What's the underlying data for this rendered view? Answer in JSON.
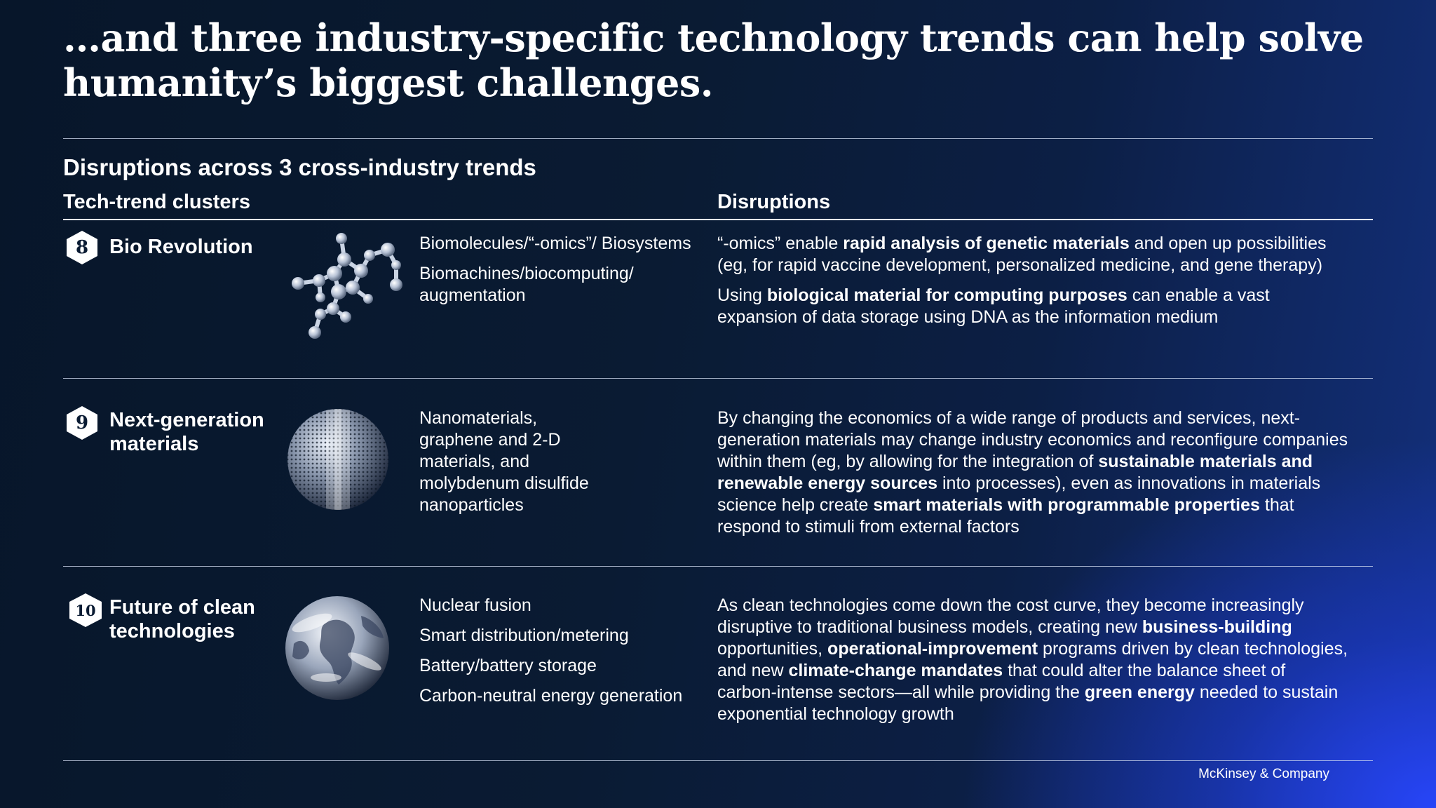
{
  "headline": "…and three industry-specific technology trends can help solve humanity’s biggest challenges.",
  "subhead": "Disruptions across 3 cross-industry trends",
  "columns": {
    "clusters": "Tech-trend clusters",
    "disruptions": "Disruptions"
  },
  "rows": [
    {
      "number": "8",
      "title": "Bio Revolution",
      "image_icon": "molecule-icon",
      "subtopics": [
        "Biomolecules/“-omics”/ Biosystems",
        "Biomachines/biocomputing/ augmentation"
      ],
      "disruptions": [
        [
          {
            "t": "“-omics” enable ",
            "b": false
          },
          {
            "t": "rapid analysis of genetic materials",
            "b": true
          },
          {
            "t": " and open up possibilities (eg, for rapid vaccine development, personalized medicine, and gene therapy)",
            "b": false
          }
        ],
        [
          {
            "t": "Using ",
            "b": false
          },
          {
            "t": "biological material for computing purposes",
            "b": true
          },
          {
            "t": " can enable a vast expansion of data storage using DNA as the information medium",
            "b": false
          }
        ]
      ]
    },
    {
      "number": "9",
      "title": "Next-generation materials",
      "image_icon": "graphene-sphere-icon",
      "subtopics": [
        "Nanomaterials, graphene and 2-D materials, and molybdenum disulfide nanoparticles"
      ],
      "disruptions": [
        [
          {
            "t": "By changing the economics of a wide range of products and services, next-generation materials may change industry economics and reconfigure companies within them (eg, by allowing for the integration of ",
            "b": false
          },
          {
            "t": "sustainable materials and renewable energy sources",
            "b": true
          },
          {
            "t": " into processes), even as innovations in materials science help create ",
            "b": false
          },
          {
            "t": "smart materials with programmable properties",
            "b": true
          },
          {
            "t": " that respond to stimuli from external factors",
            "b": false
          }
        ]
      ]
    },
    {
      "number": "10",
      "title": "Future of clean technologies",
      "image_icon": "earth-globe-icon",
      "subtopics": [
        "Nuclear fusion",
        "Smart distribution/metering",
        "Battery/battery storage",
        "Carbon-neutral energy generation"
      ],
      "disruptions": [
        [
          {
            "t": "As clean technologies come down the cost curve, they become increasingly disruptive to traditional business models, creating new ",
            "b": false
          },
          {
            "t": "business-building",
            "b": true
          },
          {
            "t": " opportunities, ",
            "b": false
          },
          {
            "t": "operational-improvement",
            "b": true
          },
          {
            "t": " programs driven by clean technologies, and new ",
            "b": false
          },
          {
            "t": "climate-change mandates",
            "b": true
          },
          {
            "t": " that could alter the balance sheet of carbon-intense sectors—all while providing the ",
            "b": false
          },
          {
            "t": "green energy",
            "b": true
          },
          {
            "t": " needed to sustain exponential technology growth",
            "b": false
          }
        ]
      ]
    }
  ],
  "footer": "McKinsey & Company"
}
